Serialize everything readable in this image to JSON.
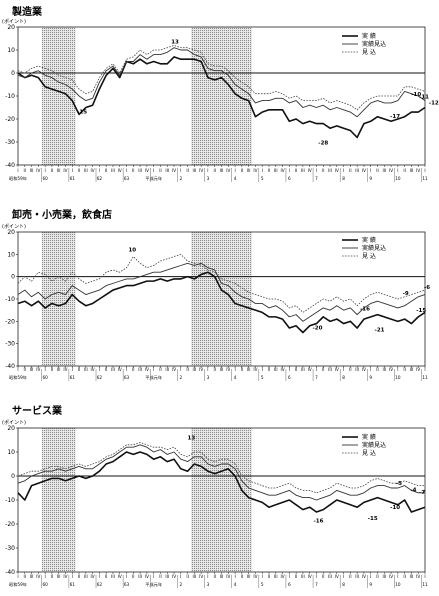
{
  "chart_data": [
    {
      "type": "line",
      "title": "製造業",
      "ylabel": "(ポイント)",
      "ylim": [
        -40,
        20
      ],
      "yticks": [
        20,
        10,
        0,
        -10,
        -20,
        -30,
        -40
      ],
      "legend": [
        "実 績",
        "実績見込",
        "見 込"
      ],
      "x_row1": [
        "I",
        "II",
        "III",
        "IV",
        "I",
        "II",
        "III",
        "IV",
        "I",
        "II",
        "III",
        "IV",
        "I",
        "II",
        "III",
        "IV",
        "I",
        "II",
        "III",
        "IV",
        "I",
        "II",
        "III",
        "IV",
        "I",
        "II",
        "III",
        "IV",
        "I",
        "II",
        "III",
        "IV",
        "I",
        "II",
        "III",
        "IV",
        "I",
        "II",
        "III",
        "IV",
        "I",
        "II",
        "III",
        "IV",
        "I",
        "II",
        "III",
        "IV",
        "I",
        "II",
        "III",
        "IV",
        "I",
        "II",
        "III",
        "IV",
        "I",
        "II",
        "III",
        "IV",
        "I"
      ],
      "x_row2": [
        "昭和59年",
        "",
        "",
        "",
        "60",
        "",
        "",
        "",
        "61",
        "",
        "",
        "",
        "62",
        "",
        "",
        "",
        "63",
        "",
        "",
        "",
        "平成元年",
        "",
        "",
        "",
        "2",
        "",
        "",
        "",
        "3",
        "",
        "",
        "",
        "4",
        "",
        "",
        "",
        "5",
        "",
        "",
        "",
        "6",
        "",
        "",
        "",
        "7",
        "",
        "",
        "",
        "8",
        "",
        "",
        "",
        "9",
        "",
        "",
        "",
        "10",
        "",
        "",
        "",
        "11"
      ],
      "series": [
        {
          "name": "実 績",
          "values": [
            0,
            -2,
            -1,
            -2,
            -6,
            -7,
            -8,
            -9,
            -12,
            -18,
            -15,
            -14,
            -7,
            -1,
            2,
            -2,
            5,
            4,
            6,
            4,
            5,
            4,
            4,
            7,
            6,
            6,
            6,
            5,
            -2,
            -3,
            -2,
            -5,
            -9,
            -11,
            -12,
            -19,
            -17,
            -16,
            -16,
            -16,
            -21,
            -20,
            -22,
            -21,
            -22,
            -22,
            -24,
            -23,
            -24,
            -25,
            -28,
            -22,
            -21,
            -19,
            -20,
            -21,
            -20,
            -19,
            -17,
            -17,
            -15
          ]
        },
        {
          "name": "実績見込",
          "values": [
            -1,
            -2,
            0,
            1,
            -1,
            -2,
            -4,
            -5,
            -7,
            -10,
            -12,
            -11,
            -4,
            1,
            3,
            -1,
            5,
            5,
            8,
            6,
            8,
            8,
            9,
            11,
            10,
            10,
            8,
            7,
            2,
            1,
            1,
            -1,
            -5,
            -7,
            -9,
            -13,
            -12,
            -12,
            -11,
            -11,
            -13,
            -12,
            -15,
            -14,
            -15,
            -14,
            -16,
            -15,
            -16,
            -17,
            -19,
            -16,
            -13,
            -12,
            -13,
            -13,
            -12,
            -8,
            -9,
            -10,
            -12
          ]
        },
        {
          "name": "見 込",
          "values": [
            1,
            0,
            2,
            3,
            2,
            1,
            -1,
            -2,
            -3,
            -7,
            -9,
            -8,
            -2,
            2,
            4,
            0,
            6,
            7,
            10,
            8,
            10,
            10,
            11,
            12,
            11,
            11,
            10,
            9,
            4,
            3,
            3,
            1,
            -2,
            -4,
            -6,
            -9,
            -9,
            -9,
            -8,
            -9,
            -11,
            -10,
            -12,
            -12,
            -12,
            -11,
            -13,
            -12,
            -13,
            -14,
            -16,
            -13,
            -11,
            -10,
            -10,
            -10,
            -10,
            -6,
            -6,
            -7,
            -8
          ]
        }
      ],
      "annotations": [
        "-15",
        "13",
        "-28",
        "-10",
        "-11",
        "-12",
        "-17",
        "-16",
        "-7"
      ]
    },
    {
      "type": "line",
      "title": "卸売・小売業，飲食店",
      "ylabel": "(ポイント)",
      "ylim": [
        -40,
        20
      ],
      "yticks": [
        20,
        10,
        0,
        -10,
        -20,
        -30,
        -40
      ],
      "legend": [
        "実 績",
        "実績見込",
        "見 込"
      ],
      "x_row1": [
        "I",
        "II",
        "III",
        "IV",
        "I",
        "II",
        "III",
        "IV",
        "I",
        "II",
        "III",
        "IV",
        "I",
        "II",
        "III",
        "IV",
        "I",
        "II",
        "III",
        "IV",
        "I",
        "II",
        "III",
        "IV",
        "I",
        "II",
        "III",
        "IV",
        "I",
        "II",
        "III",
        "IV",
        "I",
        "II",
        "III",
        "IV",
        "I",
        "II",
        "III",
        "IV",
        "I",
        "II",
        "III",
        "IV",
        "I",
        "II",
        "III",
        "IV",
        "I",
        "II",
        "III",
        "IV",
        "I",
        "II",
        "III",
        "IV",
        "I",
        "II",
        "III",
        "IV",
        "I"
      ],
      "x_row2": [
        "昭和59年",
        "",
        "",
        "",
        "60",
        "",
        "",
        "",
        "61",
        "",
        "",
        "",
        "62",
        "",
        "",
        "",
        "63",
        "",
        "",
        "",
        "平成元年",
        "",
        "",
        "",
        "2",
        "",
        "",
        "",
        "3",
        "",
        "",
        "",
        "4",
        "",
        "",
        "",
        "5",
        "",
        "",
        "",
        "6",
        "",
        "",
        "",
        "7",
        "",
        "",
        "",
        "8",
        "",
        "",
        "",
        "9",
        "",
        "",
        "",
        "10",
        "",
        "",
        "",
        "11"
      ],
      "series": [
        {
          "name": "実 績",
          "values": [
            -12,
            -11,
            -13,
            -11,
            -14,
            -12,
            -13,
            -12,
            -8,
            -11,
            -13,
            -12,
            -10,
            -8,
            -6,
            -5,
            -4,
            -4,
            -3,
            -2,
            -2,
            -1,
            -2,
            -1,
            -1,
            0,
            -1,
            1,
            2,
            0,
            -6,
            -8,
            -12,
            -13,
            -14,
            -15,
            -16,
            -18,
            -18,
            -19,
            -23,
            -22,
            -25,
            -22,
            -21,
            -18,
            -20,
            -19,
            -21,
            -20,
            -23,
            -19,
            -18,
            -17,
            -18,
            -19,
            -20,
            -19,
            -21,
            -18,
            -16
          ]
        },
        {
          "name": "実績見込",
          "values": [
            -8,
            -6,
            -9,
            -7,
            -10,
            -8,
            -7,
            -8,
            -4,
            -6,
            -8,
            -7,
            -6,
            -4,
            -3,
            -2,
            -1,
            -1,
            0,
            1,
            2,
            2,
            3,
            4,
            5,
            6,
            5,
            6,
            4,
            3,
            -3,
            -4,
            -7,
            -9,
            -10,
            -12,
            -12,
            -14,
            -13,
            -15,
            -18,
            -17,
            -20,
            -18,
            -16,
            -14,
            -15,
            -13,
            -15,
            -14,
            -17,
            -14,
            -12,
            -11,
            -12,
            -13,
            -14,
            -13,
            -11,
            -9,
            -8
          ]
        },
        {
          "name": "見 込",
          "values": [
            -3,
            0,
            -2,
            2,
            1,
            -2,
            0,
            -2,
            2,
            -1,
            -3,
            -2,
            -1,
            2,
            3,
            2,
            4,
            9,
            6,
            4,
            5,
            7,
            8,
            9,
            10,
            7,
            6,
            5,
            3,
            2,
            -1,
            -2,
            -3,
            -5,
            -7,
            -8,
            -9,
            -10,
            -10,
            -11,
            -14,
            -13,
            -16,
            -14,
            -12,
            -10,
            -11,
            -9,
            -11,
            -10,
            -13,
            -10,
            -8,
            -7,
            -8,
            -9,
            -10,
            -9,
            -8,
            -7,
            -6
          ]
        }
      ],
      "annotations": [
        "10",
        "-20",
        "-21",
        "-16",
        "-15",
        "-9",
        "-6"
      ]
    },
    {
      "type": "line",
      "title": "サービス業",
      "ylabel": "(ポイント)",
      "ylim": [
        -40,
        20
      ],
      "yticks": [
        20,
        10,
        0,
        -10,
        -20,
        -30,
        -40
      ],
      "legend": [
        "実 績",
        "実績見込",
        "見 込"
      ],
      "x_row1": [
        "I",
        "II",
        "III",
        "IV",
        "I",
        "II",
        "III",
        "IV",
        "I",
        "II",
        "III",
        "IV",
        "I",
        "II",
        "III",
        "IV",
        "I",
        "II",
        "III",
        "IV",
        "I",
        "II",
        "III",
        "IV",
        "I",
        "II",
        "III",
        "IV",
        "I",
        "II",
        "III",
        "IV",
        "I",
        "II",
        "III",
        "IV",
        "I",
        "II",
        "III",
        "IV",
        "I",
        "II",
        "III",
        "IV",
        "I",
        "II",
        "III",
        "IV",
        "I",
        "II",
        "III",
        "IV",
        "I",
        "II",
        "III",
        "IV",
        "I",
        "II",
        "III",
        "IV",
        "I"
      ],
      "x_row2": [
        "昭和59年",
        "",
        "",
        "",
        "60",
        "",
        "",
        "",
        "61",
        "",
        "",
        "",
        "62",
        "",
        "",
        "",
        "63",
        "",
        "",
        "",
        "平成元年",
        "",
        "",
        "",
        "2",
        "",
        "",
        "",
        "3",
        "",
        "",
        "",
        "4",
        "",
        "",
        "",
        "5",
        "",
        "",
        "",
        "6",
        "",
        "",
        "",
        "7",
        "",
        "",
        "",
        "8",
        "",
        "",
        "",
        "9",
        "",
        "",
        "",
        "10",
        "",
        "",
        "",
        "11"
      ],
      "series": [
        {
          "name": "実 績",
          "values": [
            -7,
            -10,
            -4,
            -3,
            -2,
            -1,
            -1,
            -2,
            -1,
            0,
            -1,
            0,
            2,
            5,
            6,
            8,
            10,
            9,
            10,
            9,
            7,
            8,
            6,
            7,
            3,
            2,
            5,
            4,
            2,
            1,
            2,
            3,
            0,
            -6,
            -9,
            -10,
            -11,
            -13,
            -12,
            -11,
            -10,
            -12,
            -14,
            -13,
            -15,
            -14,
            -12,
            -10,
            -11,
            -12,
            -13,
            -11,
            -10,
            -9,
            -10,
            -11,
            -12,
            -10,
            -15,
            -14,
            -13
          ]
        },
        {
          "name": "実績見込",
          "values": [
            -3,
            -2,
            0,
            1,
            2,
            2,
            3,
            2,
            3,
            4,
            3,
            3,
            5,
            7,
            8,
            10,
            12,
            12,
            13,
            12,
            10,
            11,
            9,
            10,
            7,
            6,
            8,
            8,
            5,
            4,
            5,
            5,
            3,
            -2,
            -5,
            -6,
            -7,
            -8,
            -8,
            -7,
            -6,
            -8,
            -9,
            -9,
            -10,
            -9,
            -8,
            -6,
            -7,
            -8,
            -8,
            -7,
            -5,
            -4,
            -4,
            -5,
            -5,
            -4,
            -6,
            -7,
            -7
          ]
        },
        {
          "name": "見 込",
          "values": [
            0,
            1,
            2,
            2,
            3,
            4,
            4,
            3,
            4,
            5,
            4,
            5,
            6,
            8,
            9,
            11,
            13,
            13,
            14,
            13,
            12,
            12,
            11,
            12,
            9,
            8,
            10,
            10,
            7,
            6,
            7,
            7,
            5,
            0,
            -2,
            -3,
            -4,
            -5,
            -5,
            -4,
            -3,
            -5,
            -6,
            -6,
            -7,
            -6,
            -5,
            -3,
            -4,
            -5,
            -5,
            -4,
            -2,
            -1,
            -2,
            -3,
            -3,
            -2,
            -3,
            -4,
            -4
          ]
        }
      ],
      "annotations": [
        "13",
        "-16",
        "-15",
        "-5",
        "-4",
        "-7",
        "-10"
      ]
    }
  ]
}
